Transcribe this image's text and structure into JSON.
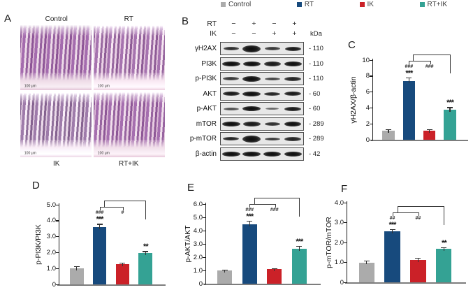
{
  "figure_legend": {
    "items": [
      {
        "label": "Control",
        "color": "#ababab"
      },
      {
        "label": "RT",
        "color": "#174a7d"
      },
      {
        "label": "IK",
        "color": "#cb2128"
      },
      {
        "label": "RT+IK",
        "color": "#34a294"
      }
    ]
  },
  "histology": {
    "panel_label": "A",
    "scale_bar_text": "100 μm",
    "images": [
      {
        "label": "Control",
        "label_position": "top"
      },
      {
        "label": "RT",
        "label_position": "top"
      },
      {
        "label": "IK",
        "label_position": "bottom"
      },
      {
        "label": "RT+IK",
        "label_position": "bottom"
      }
    ]
  },
  "blot": {
    "panel_label": "B",
    "kda_header": "kDa",
    "condition_rows": [
      {
        "label": "RT",
        "signs": [
          "−",
          "+",
          "−",
          "+"
        ]
      },
      {
        "label": "IK",
        "signs": [
          "−",
          "−",
          "+",
          "+"
        ]
      }
    ],
    "rows": [
      {
        "protein": "γH2AX",
        "kda": "- 110",
        "bands": [
          [
            0.8,
            5,
            0.85
          ],
          [
            0.95,
            10,
            1
          ],
          [
            0.8,
            5,
            0.8
          ],
          [
            0.85,
            6,
            0.95
          ]
        ]
      },
      {
        "protein": "PI3K",
        "kda": "- 110",
        "bands": [
          [
            0.95,
            7,
            1
          ],
          [
            0.92,
            7,
            1
          ],
          [
            0.9,
            7,
            0.95
          ],
          [
            0.92,
            7,
            1
          ]
        ]
      },
      {
        "protein": "p-PI3K",
        "kda": "- 110",
        "bands": [
          [
            0.85,
            5,
            0.8
          ],
          [
            0.95,
            8,
            1
          ],
          [
            0.8,
            4,
            0.75
          ],
          [
            0.88,
            6,
            0.9
          ]
        ]
      },
      {
        "protein": "AKT",
        "kda": "- 60",
        "bands": [
          [
            0.9,
            6,
            0.95
          ],
          [
            0.95,
            7,
            1
          ],
          [
            0.85,
            5,
            0.9
          ],
          [
            0.9,
            6,
            0.95
          ]
        ]
      },
      {
        "protein": "p-AKT",
        "kda": "- 60",
        "bands": [
          [
            0.8,
            4,
            0.7
          ],
          [
            0.95,
            7,
            1
          ],
          [
            0.72,
            3,
            0.6
          ],
          [
            0.9,
            6,
            0.95
          ]
        ]
      },
      {
        "protein": "mTOR",
        "kda": "- 289",
        "bands": [
          [
            0.95,
            7,
            1
          ],
          [
            0.92,
            7,
            0.95
          ],
          [
            0.82,
            5,
            0.85
          ],
          [
            0.9,
            7,
            1
          ]
        ]
      },
      {
        "protein": "p-mTOR",
        "kda": "- 289",
        "bands": [
          [
            0.85,
            5,
            0.9
          ],
          [
            0.95,
            10,
            1
          ],
          [
            0.8,
            4,
            0.8
          ],
          [
            0.88,
            6,
            0.9
          ]
        ]
      },
      {
        "protein": "β-actin",
        "kda": "- 42",
        "bands": [
          [
            0.95,
            7,
            1
          ],
          [
            0.95,
            7,
            1
          ],
          [
            0.92,
            7,
            1
          ],
          [
            0.92,
            7,
            1
          ]
        ]
      }
    ]
  },
  "chart_data": [
    {
      "type": "bar",
      "panel_label": "C",
      "ylabel": "γH2AX/β-actin",
      "categories": [
        "Control",
        "RT",
        "IK",
        "RT+IK"
      ],
      "values": [
        1.1,
        7.4,
        1.1,
        3.8
      ],
      "errors": [
        0.25,
        0.4,
        0.2,
        0.3
      ],
      "ylim": [
        0,
        10
      ],
      "ytick_labels": [
        "0",
        "2",
        "4",
        "6",
        "8",
        "10"
      ],
      "annotations": {
        "rt_hash": "###",
        "rt_stars": "***",
        "mid_hash": "###",
        "rtik_stars": "***"
      }
    },
    {
      "type": "bar",
      "panel_label": "D",
      "ylabel": "p-PI3K/PI3K",
      "categories": [
        "Control",
        "RT",
        "IK",
        "RT+IK"
      ],
      "values": [
        1.0,
        3.6,
        1.27,
        1.97
      ],
      "errors": [
        0.15,
        0.2,
        0.1,
        0.12
      ],
      "ylim": [
        0,
        5
      ],
      "ytick_labels": [
        "0",
        "1.0",
        "2.0",
        "3.0",
        "4.0",
        "5.0"
      ],
      "annotations": {
        "rt_hash": "###",
        "rt_stars": "***",
        "mid_hash": "#",
        "rtik_stars": "**"
      }
    },
    {
      "type": "bar",
      "panel_label": "E",
      "ylabel": "p-AKT/AKT",
      "categories": [
        "Control",
        "RT",
        "IK",
        "RT+IK"
      ],
      "values": [
        1.0,
        4.5,
        1.08,
        2.65
      ],
      "errors": [
        0.06,
        0.25,
        0.08,
        0.2
      ],
      "ylim": [
        0,
        6
      ],
      "ytick_labels": [
        "0",
        "1.0",
        "2.0",
        "3.0",
        "4.0",
        "5.0",
        "6.0"
      ],
      "annotations": {
        "rt_hash": "###",
        "rt_stars": "***",
        "mid_hash": "###",
        "rtik_stars": "***"
      }
    },
    {
      "type": "bar",
      "panel_label": "F",
      "ylabel": "p-mTOR/mTOR",
      "categories": [
        "Control",
        "RT",
        "IK",
        "RT+IK"
      ],
      "values": [
        1.0,
        2.55,
        1.12,
        1.7
      ],
      "errors": [
        0.1,
        0.12,
        0.12,
        0.06
      ],
      "ylim": [
        0,
        4
      ],
      "ytick_labels": [
        "0",
        "1.0",
        "2.0",
        "3.0",
        "4.0"
      ],
      "annotations": {
        "rt_hash": "##",
        "rt_stars": "***",
        "mid_hash": "##",
        "rtik_stars": "**"
      }
    }
  ]
}
